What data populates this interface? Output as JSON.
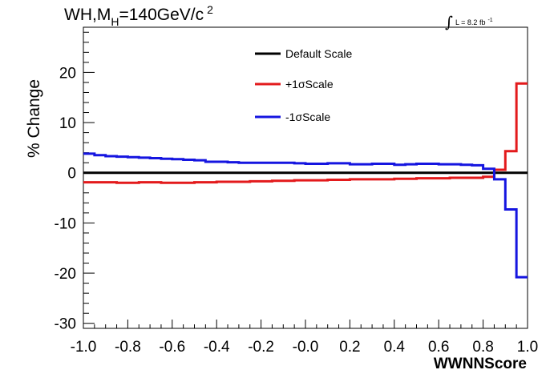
{
  "chart_data": {
    "type": "line",
    "title": {
      "main": "WH,M",
      "subscript": "H",
      "rest": "=140GeV/c",
      "superscript": "2"
    },
    "luminosity": {
      "integral_symbol": "∫",
      "text": "L = 8.2 fb",
      "superscript": "-1"
    },
    "xlabel": "WWNNScore",
    "ylabel": "% Change",
    "xlim": [
      -1.0,
      1.0
    ],
    "ylim": [
      -31,
      29
    ],
    "x_ticks": [
      -1.0,
      -0.8,
      -0.6,
      -0.4,
      -0.2,
      0.0,
      0.2,
      0.4,
      0.6,
      0.8,
      1.0
    ],
    "x_tick_labels": [
      "-1.0",
      "-0.8",
      "-0.6",
      "-0.4",
      "-0.2",
      "-0.0",
      "0.2",
      "0.4",
      "0.6",
      "0.8",
      "1.0"
    ],
    "y_ticks": [
      -30,
      -20,
      -10,
      0,
      10,
      20
    ],
    "y_tick_labels": [
      "-30",
      "-20",
      "-10",
      "0",
      "10",
      "20"
    ],
    "legend_position": "top-center",
    "bin_edges": [
      -1.0,
      -0.95,
      -0.9,
      -0.85,
      -0.8,
      -0.75,
      -0.7,
      -0.65,
      -0.6,
      -0.55,
      -0.5,
      -0.45,
      -0.4,
      -0.35,
      -0.3,
      -0.25,
      -0.2,
      -0.15,
      -0.1,
      -0.05,
      0.0,
      0.05,
      0.1,
      0.15,
      0.2,
      0.25,
      0.3,
      0.35,
      0.4,
      0.45,
      0.5,
      0.55,
      0.6,
      0.65,
      0.7,
      0.75,
      0.8,
      0.85,
      0.9,
      0.95,
      1.0
    ],
    "series": [
      {
        "name": "Default Scale",
        "color": "#000000",
        "values": [
          0,
          0,
          0,
          0,
          0,
          0,
          0,
          0,
          0,
          0,
          0,
          0,
          0,
          0,
          0,
          0,
          0,
          0,
          0,
          0,
          0,
          0,
          0,
          0,
          0,
          0,
          0,
          0,
          0,
          0,
          0,
          0,
          0,
          0,
          0,
          0,
          0,
          0,
          0,
          0
        ]
      },
      {
        "name": "+1σScale",
        "color": "#e31a1c",
        "values": [
          -1.9,
          -1.9,
          -1.9,
          -2.0,
          -2.0,
          -1.9,
          -1.9,
          -2.0,
          -2.0,
          -2.0,
          -1.9,
          -1.9,
          -1.8,
          -1.8,
          -1.8,
          -1.7,
          -1.7,
          -1.6,
          -1.6,
          -1.5,
          -1.5,
          -1.5,
          -1.4,
          -1.4,
          -1.3,
          -1.3,
          -1.3,
          -1.3,
          -1.2,
          -1.2,
          -1.1,
          -1.1,
          -1.1,
          -1.0,
          -1.0,
          -1.0,
          -0.8,
          0.6,
          4.3,
          17.8
        ]
      },
      {
        "name": "-1σScale",
        "color": "#1515e0",
        "values": [
          3.8,
          3.5,
          3.3,
          3.2,
          3.1,
          3.0,
          2.9,
          2.8,
          2.7,
          2.6,
          2.5,
          2.2,
          2.2,
          2.1,
          2.0,
          2.0,
          2.0,
          2.0,
          2.0,
          1.9,
          1.8,
          1.8,
          1.9,
          1.9,
          1.7,
          1.7,
          1.8,
          1.8,
          1.6,
          1.7,
          1.8,
          1.8,
          1.7,
          1.7,
          1.6,
          1.5,
          0.8,
          -1.3,
          -7.3,
          -20.8
        ]
      }
    ]
  }
}
